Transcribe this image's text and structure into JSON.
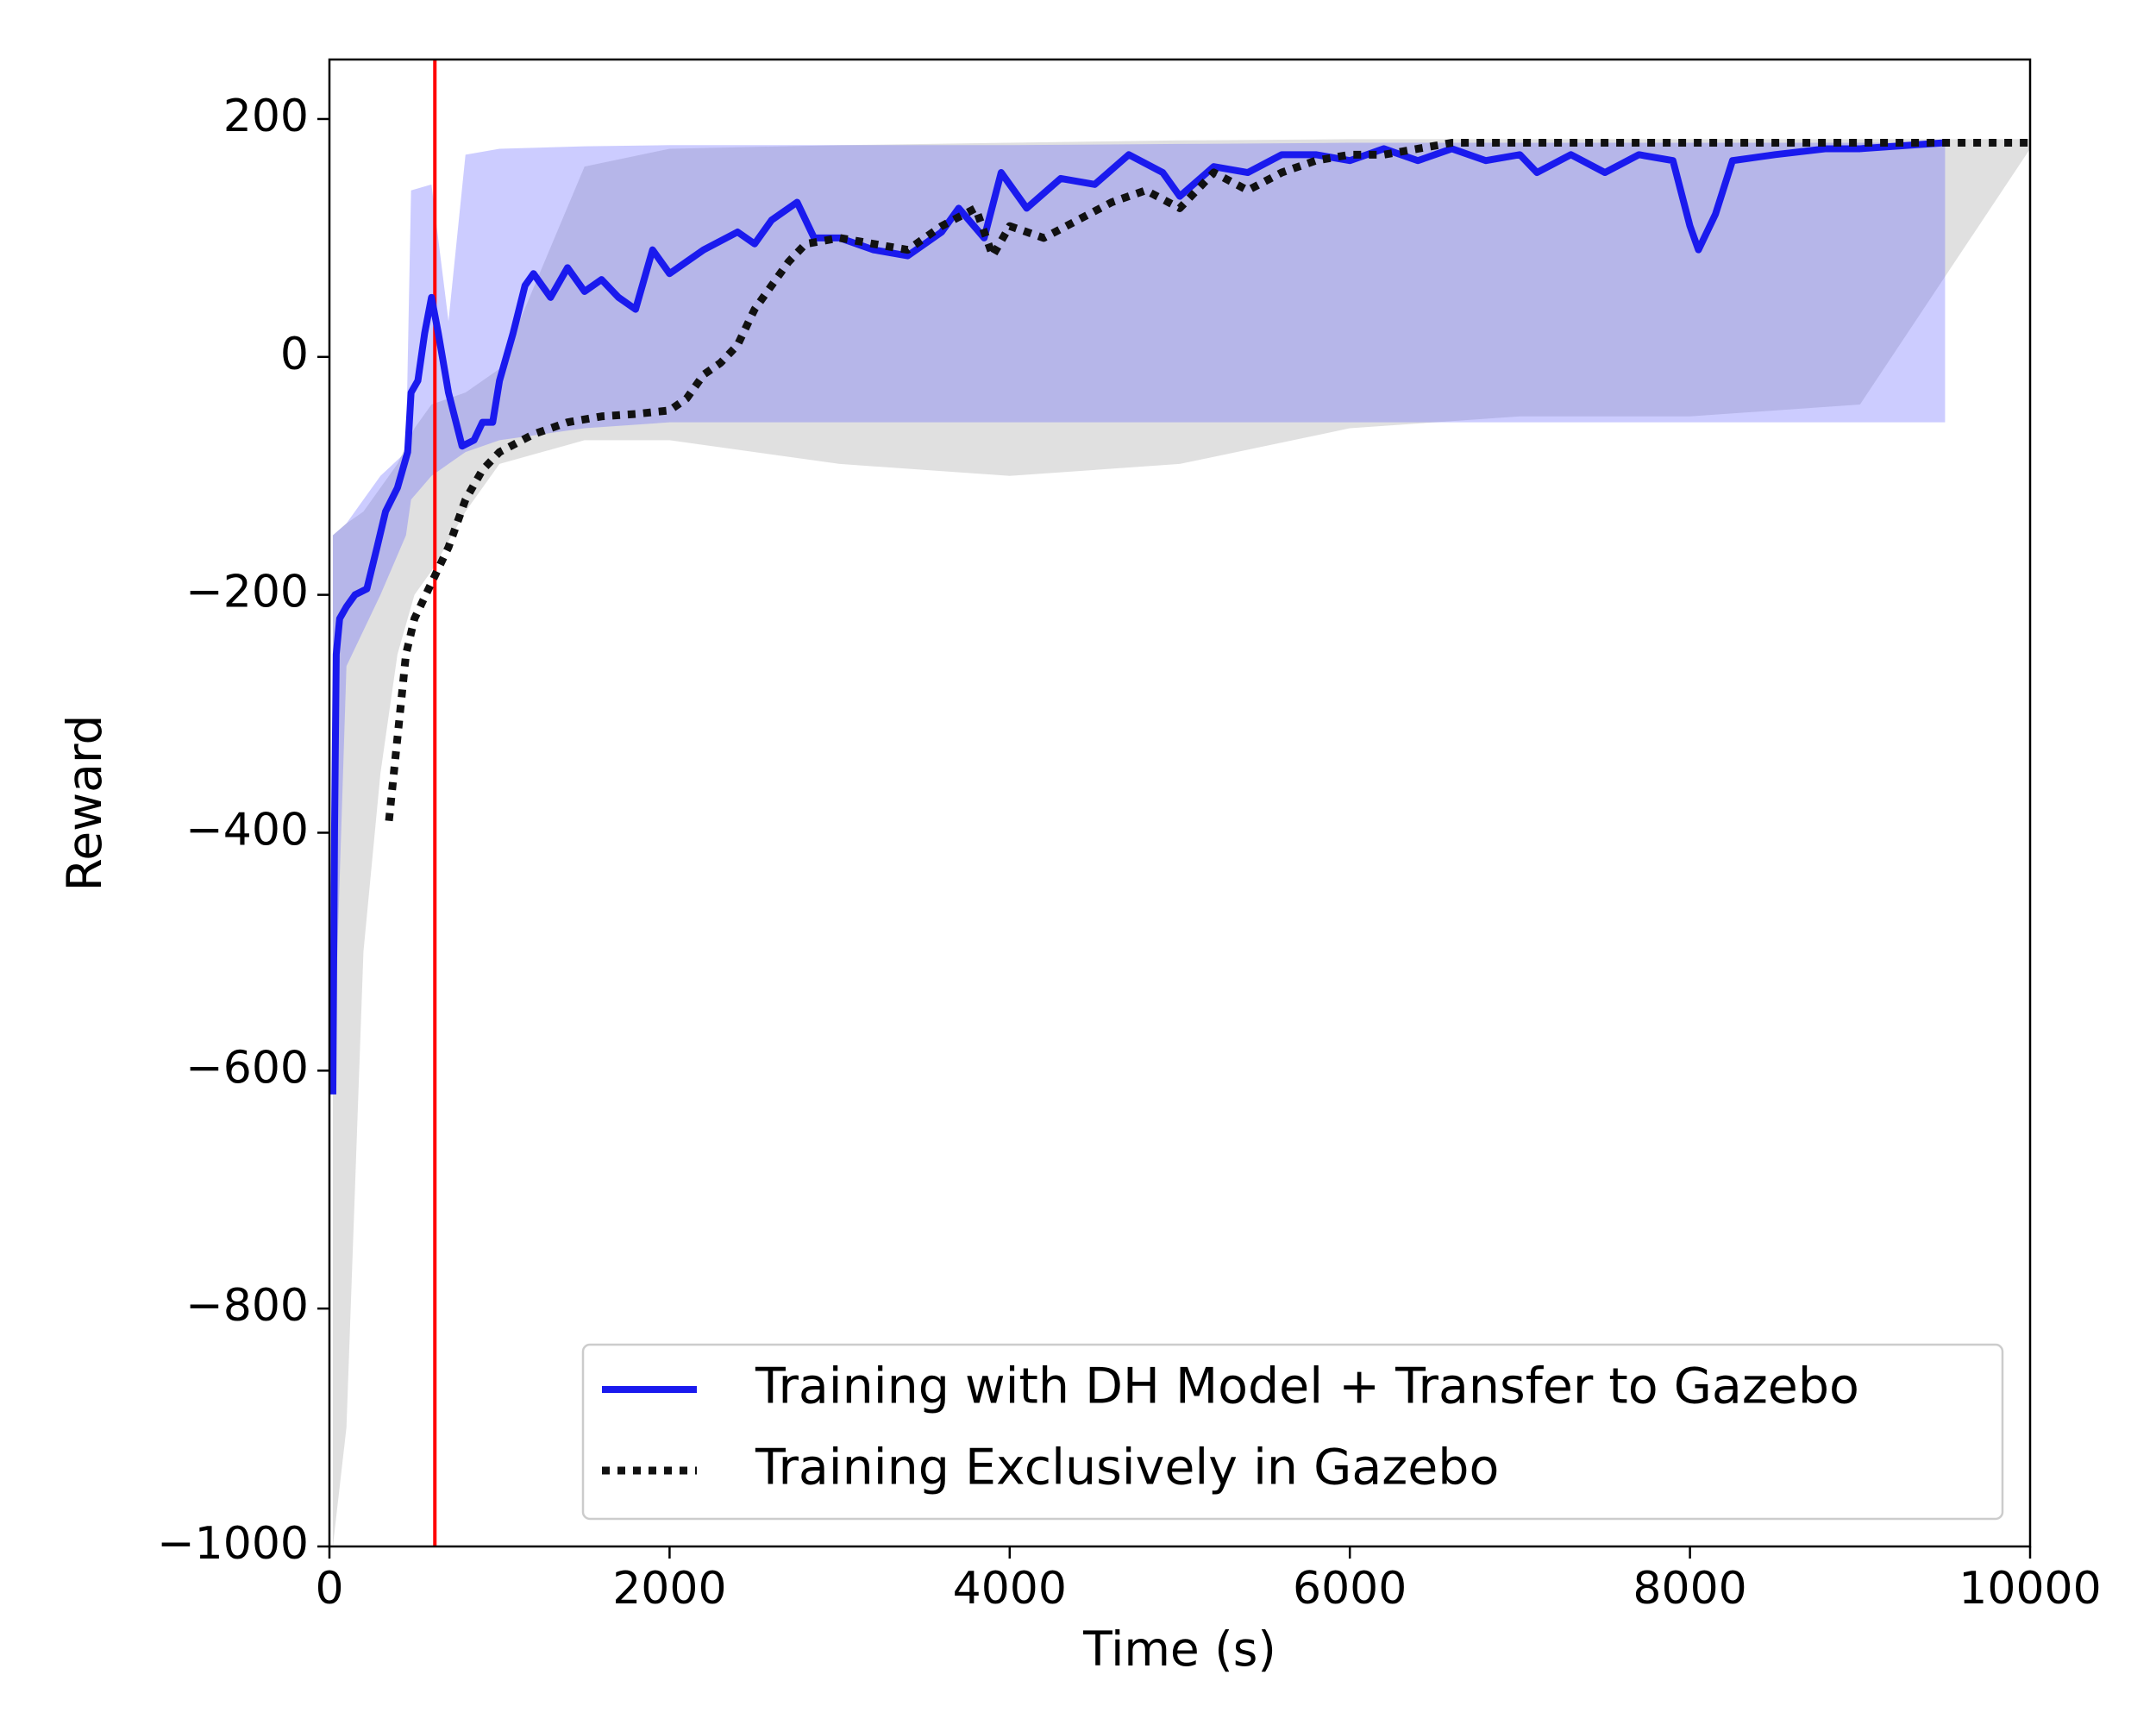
{
  "chart_data": {
    "type": "line",
    "xlabel": "Time (s)",
    "ylabel": "Reward",
    "xlim": [
      0,
      10000
    ],
    "ylim": [
      -1000,
      250
    ],
    "xticks": [
      0,
      2000,
      4000,
      6000,
      8000,
      10000
    ],
    "yticks": [
      {
        "value": -1000,
        "label": "−1000"
      },
      {
        "value": -800,
        "label": "−800"
      },
      {
        "value": -600,
        "label": "−600"
      },
      {
        "value": -400,
        "label": "−400"
      },
      {
        "value": -200,
        "label": "−200"
      },
      0,
      200
    ],
    "legend": "lower right",
    "vline": {
      "x": 620,
      "color": "#ff0000"
    },
    "bands": [
      {
        "color": "#999999",
        "x": [
          20,
          100,
          200,
          300,
          400,
          500,
          600,
          800,
          1000,
          1500,
          2000,
          3000,
          4000,
          5000,
          6000,
          7000,
          8000,
          9000,
          10000
        ],
        "lower": [
          -1000,
          -900,
          -500,
          -350,
          -250,
          -200,
          -180,
          -130,
          -90,
          -70,
          -70,
          -90,
          -100,
          -90,
          -60,
          -50,
          -50,
          -40,
          175
        ],
        "upper": [
          -150,
          -140,
          -130,
          -110,
          -90,
          -60,
          -40,
          -30,
          -10,
          160,
          175,
          178,
          180,
          182,
          183,
          183,
          183,
          183,
          183
        ]
      },
      {
        "color": "#5555ff",
        "x": [
          20,
          100,
          200,
          300,
          450,
          480,
          600,
          700,
          800,
          1000,
          1500,
          2000,
          3000,
          4000,
          5000,
          6000,
          7000,
          8000,
          9000,
          9500
        ],
        "lower": [
          -620,
          -260,
          -230,
          -200,
          -150,
          -120,
          -100,
          -90,
          -80,
          -70,
          -60,
          -55,
          -55,
          -55,
          -55,
          -55,
          -55,
          -55,
          -55,
          -55
        ],
        "upper": [
          -150,
          -140,
          -120,
          -100,
          -80,
          140,
          145,
          30,
          170,
          175,
          177,
          178,
          178,
          178,
          179,
          180,
          180,
          180,
          180,
          180
        ]
      }
    ],
    "series": [
      {
        "name": "Training with DH Model + Transfer to Gazebo",
        "color": "#1a1aee",
        "style": "solid",
        "x": [
          20,
          30,
          40,
          60,
          100,
          150,
          220,
          280,
          330,
          400,
          460,
          480,
          520,
          560,
          600,
          640,
          700,
          780,
          850,
          900,
          960,
          1000,
          1080,
          1150,
          1200,
          1300,
          1400,
          1500,
          1600,
          1700,
          1800,
          1900,
          2000,
          2100,
          2200,
          2400,
          2500,
          2600,
          2750,
          2850,
          3000,
          3200,
          3400,
          3600,
          3700,
          3850,
          3950,
          4100,
          4300,
          4500,
          4700,
          4900,
          5000,
          5200,
          5400,
          5600,
          5800,
          6000,
          6200,
          6400,
          6600,
          6800,
          7000,
          7100,
          7300,
          7500,
          7700,
          7900,
          8000,
          8050,
          8150,
          8250,
          8500,
          8800,
          9000,
          9500
        ],
        "values": [
          -620,
          -400,
          -250,
          -220,
          -210,
          -200,
          -195,
          -160,
          -130,
          -110,
          -80,
          -30,
          -20,
          20,
          50,
          20,
          -30,
          -75,
          -70,
          -55,
          -55,
          -20,
          20,
          60,
          70,
          50,
          75,
          55,
          65,
          50,
          40,
          90,
          70,
          80,
          90,
          105,
          95,
          115,
          130,
          100,
          100,
          90,
          85,
          105,
          125,
          100,
          155,
          125,
          150,
          145,
          170,
          155,
          135,
          160,
          155,
          170,
          170,
          165,
          175,
          165,
          175,
          165,
          170,
          155,
          170,
          155,
          170,
          165,
          110,
          90,
          120,
          165,
          170,
          175,
          175,
          180
        ]
      },
      {
        "name": "Training Exclusively in Gazebo",
        "color": "#111111",
        "style": "dotted",
        "x": [
          350,
          400,
          450,
          500,
          600,
          700,
          800,
          900,
          1000,
          1200,
          1400,
          1600,
          1800,
          2000,
          2100,
          2200,
          2300,
          2400,
          2500,
          2600,
          2700,
          2800,
          3000,
          3200,
          3400,
          3600,
          3800,
          3900,
          4000,
          4200,
          4400,
          4600,
          4800,
          5000,
          5200,
          5400,
          5600,
          5800,
          6000,
          6200,
          6400,
          6600,
          7000,
          8000,
          9000,
          10000
        ],
        "values": [
          -390,
          -320,
          -250,
          -220,
          -190,
          -160,
          -120,
          -95,
          -80,
          -65,
          -55,
          -50,
          -48,
          -45,
          -35,
          -15,
          -5,
          10,
          40,
          60,
          80,
          95,
          100,
          95,
          90,
          110,
          125,
          85,
          110,
          100,
          115,
          130,
          140,
          125,
          155,
          140,
          155,
          165,
          170,
          170,
          175,
          180,
          180,
          180,
          180,
          180
        ]
      }
    ]
  }
}
